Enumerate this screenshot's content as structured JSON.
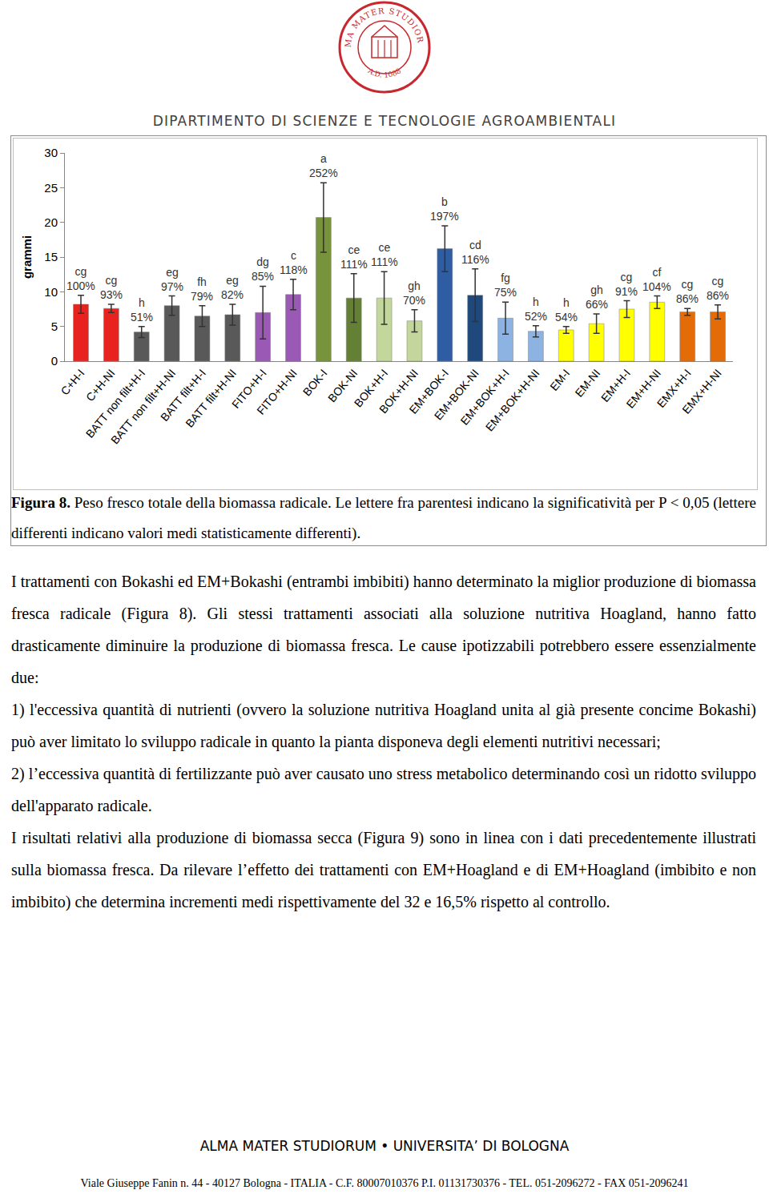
{
  "logo": {
    "top_text": "ALMA MATER STUDIORUM",
    "bottom_text": "A.D. 1088"
  },
  "header": "DIPARTIMENTO DI SCIENZE E TECNOLOGIE AGROAMBIENTALI",
  "chart_data": {
    "type": "bar",
    "y_label": "grammi",
    "categories": [
      "C+H-I",
      "C+H-NI",
      "BATT non filt+H-I",
      "BATT non filt+H-NI",
      "BATT filt+H-I",
      "BATT filt+H-NI",
      "FITO+H-I",
      "FITO+H-NI",
      "BOK-I",
      "BOK-NI",
      "BOK+H-I",
      "BOK+H-NI",
      "EM+BOK-I",
      "EM+BOK-NI",
      "EM+BOK+H-I",
      "EM+BOK+H-NI",
      "EM-I",
      "EM-NI",
      "EM+H-I",
      "EM+H-NI",
      "EMX+H-I",
      "EMX+H-NI"
    ],
    "values": [
      8.2,
      7.6,
      4.2,
      8.0,
      6.5,
      6.7,
      7.0,
      9.6,
      20.7,
      9.1,
      9.1,
      5.8,
      16.2,
      9.5,
      6.2,
      4.3,
      4.5,
      5.4,
      7.5,
      8.5,
      7.1,
      7.1
    ],
    "errors": [
      1.3,
      0.6,
      0.8,
      1.4,
      1.5,
      1.5,
      3.8,
      2.2,
      5.0,
      3.5,
      3.8,
      1.6,
      3.3,
      3.8,
      2.3,
      0.8,
      0.5,
      1.4,
      1.2,
      0.9,
      0.5,
      1.0
    ],
    "letters": [
      "cg",
      "cg",
      "h",
      "eg",
      "fh",
      "eg",
      "dg",
      "c",
      "a",
      "ce",
      "ce",
      "gh",
      "b",
      "cd",
      "fg",
      "h",
      "h",
      "gh",
      "cg",
      "cf",
      "cg",
      "cg"
    ],
    "percent_labels": [
      "100%",
      "93%",
      "51%",
      "97%",
      "79%",
      "82%",
      "85%",
      "118%",
      "252%",
      "111%",
      "111%",
      "70%",
      "197%",
      "116%",
      "75%",
      "52%",
      "54%",
      "66%",
      "91%",
      "104%",
      "86%",
      "86%"
    ],
    "colors": [
      "#e8231f",
      "#e8231f",
      "#595959",
      "#595959",
      "#595959",
      "#595959",
      "#9b59b6",
      "#9b59b6",
      "#77933c",
      "#638034",
      "#c3d69b",
      "#c3d69b",
      "#2e5da3",
      "#1f497d",
      "#8db3e2",
      "#8db3e2",
      "#ffff00",
      "#ffff00",
      "#ffff00",
      "#ffff00",
      "#e36c09",
      "#e36c09"
    ],
    "ylim": [
      0,
      30
    ],
    "yticks": [
      0,
      5,
      10,
      15,
      20,
      25,
      30
    ],
    "grid": false
  },
  "caption": {
    "label": "Figura 8.",
    "text": "Peso fresco totale della biomassa radicale. Le lettere fra parentesi indicano la significatività per P < 0,05 (lettere differenti indicano valori medi statisticamente differenti)."
  },
  "body": [
    "I trattamenti con Bokashi ed EM+Bokashi (entrambi imbibiti) hanno determinato la miglior produzione di biomassa fresca radicale (Figura 8). Gli stessi trattamenti associati alla soluzione nutritiva Hoagland, hanno fatto drasticamente diminuire la produzione di biomassa fresca. Le cause ipotizzabili potrebbero essere essenzialmente due:",
    "1) l'eccessiva quantità di nutrienti (ovvero la soluzione nutritiva Hoagland unita al già presente concime Bokashi) può aver limitato lo sviluppo radicale in quanto la pianta disponeva degli elementi nutritivi necessari;",
    "2) l’eccessiva quantità di fertilizzante può aver causato uno stress metabolico determinando così un ridotto sviluppo dell'apparato radicale.",
    "I risultati relativi alla produzione di biomassa secca (Figura 9) sono in linea con i dati precedentemente illustrati sulla biomassa fresca. Da rilevare l’effetto dei trattamenti con EM+Hoagland e di EM+Hoagland (imbibito e non imbibito) che determina incrementi medi rispettivamente del 32 e 16,5% rispetto al controllo."
  ],
  "footer": {
    "title": "ALMA MATER STUDIORUM • UNIVERSITA’ DI BOLOGNA",
    "address": "Viale Giuseppe Fanin n. 44 - 40127 Bologna - ITALIA - C.F. 80007010376 P.I. 01131730376 - TEL. 051-2096272 - FAX 051-2096241"
  }
}
